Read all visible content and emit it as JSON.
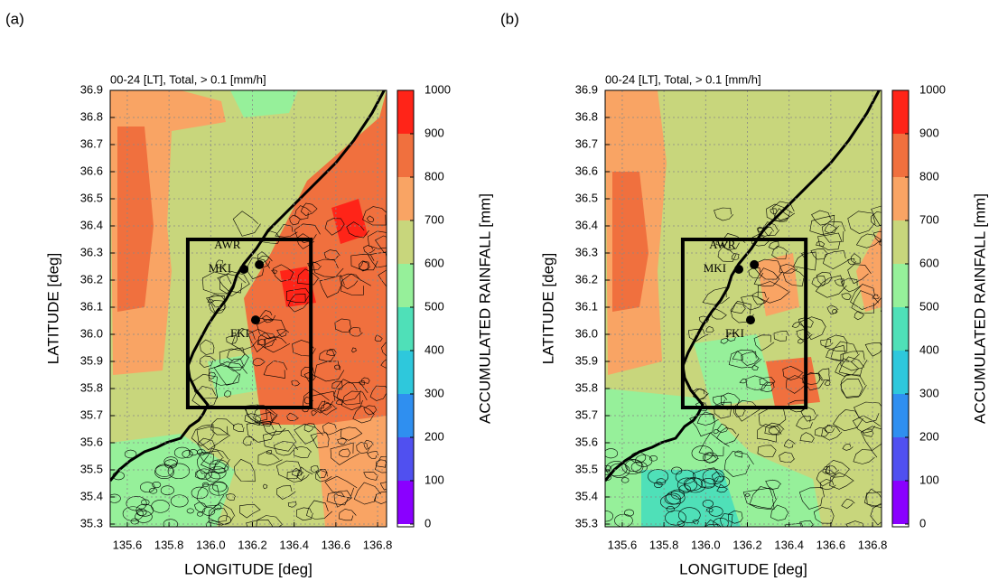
{
  "chart_data": [
    {
      "type": "map",
      "panel_label": "(a)",
      "title": "00-24 [LT], Total, > 0.1 [mm/h]",
      "x_label": "LONGITUDE [deg]",
      "y_label": "LATITUDE [deg]",
      "xlim": [
        135.518,
        136.843
      ],
      "ylim": [
        35.29,
        36.9
      ],
      "xticks": [
        135.6,
        135.8,
        {
          "value": 136.0,
          "label": "136.0"
        },
        136.2,
        136.4,
        136.6,
        136.8
      ],
      "yticks": [
        35.3,
        35.4,
        35.5,
        35.6,
        35.7,
        35.8,
        35.9,
        {
          "value": 36.0,
          "label": "36.0"
        },
        36.1,
        36.2,
        36.3,
        36.4,
        36.5,
        36.6,
        36.7,
        36.8,
        36.9
      ],
      "grid": true,
      "colorbar": {
        "label": "ACCUMULATED RAINFALL [mm]",
        "lim": [
          0,
          1000
        ],
        "ticks": [
          0,
          100,
          200,
          300,
          400,
          500,
          600,
          700,
          800,
          900,
          1000
        ],
        "colors": [
          "#8a00ff",
          "#5050f0",
          "#2f8ff0",
          "#2ec8dc",
          "#4fe0b8",
          "#96f09a",
          "#c8d67c",
          "#f9a464",
          "#f0703e",
          "#ff2418"
        ]
      },
      "box": {
        "xlim": [
          135.89,
          136.48
        ],
        "ylim": [
          35.73,
          36.35
        ]
      },
      "stations": [
        {
          "name": "AWR",
          "lon": 136.233,
          "lat": 36.257
        },
        {
          "name": "MKI",
          "lon": 136.159,
          "lat": 36.24
        },
        {
          "name": "FKI",
          "lon": 136.215,
          "lat": 36.053
        }
      ]
    },
    {
      "type": "map",
      "panel_label": "(b)",
      "title": "00-24 [LT], Total, > 0.1 [mm/h]",
      "x_label": "LONGITUDE [deg]",
      "y_label": "LATITUDE [deg]",
      "xlim": [
        135.518,
        136.843
      ],
      "ylim": [
        35.29,
        36.9
      ],
      "xticks": [
        135.6,
        135.8,
        {
          "value": 136.0,
          "label": "136.0"
        },
        136.2,
        136.4,
        136.6,
        136.8
      ],
      "yticks": [
        35.3,
        35.4,
        35.5,
        35.6,
        35.7,
        35.8,
        35.9,
        {
          "value": 36.0,
          "label": "36.0"
        },
        36.1,
        36.2,
        36.3,
        36.4,
        36.5,
        36.6,
        36.7,
        36.8,
        36.9
      ],
      "grid": true,
      "colorbar": {
        "label": "ACCUMULATED RAINFALL [mm]",
        "lim": [
          0,
          1000
        ],
        "ticks": [
          0,
          100,
          200,
          300,
          400,
          500,
          600,
          700,
          800,
          900,
          1000
        ],
        "colors": [
          "#8a00ff",
          "#5050f0",
          "#2f8ff0",
          "#2ec8dc",
          "#4fe0b8",
          "#96f09a",
          "#c8d67c",
          "#f9a464",
          "#f0703e",
          "#ff2418"
        ]
      },
      "box": {
        "xlim": [
          135.89,
          136.48
        ],
        "ylim": [
          35.73,
          36.35
        ]
      },
      "stations": [
        {
          "name": "AWR",
          "lon": 136.233,
          "lat": 36.257
        },
        {
          "name": "MKI",
          "lon": 136.159,
          "lat": 36.24
        },
        {
          "name": "FKI",
          "lon": 136.215,
          "lat": 36.053
        }
      ]
    }
  ]
}
